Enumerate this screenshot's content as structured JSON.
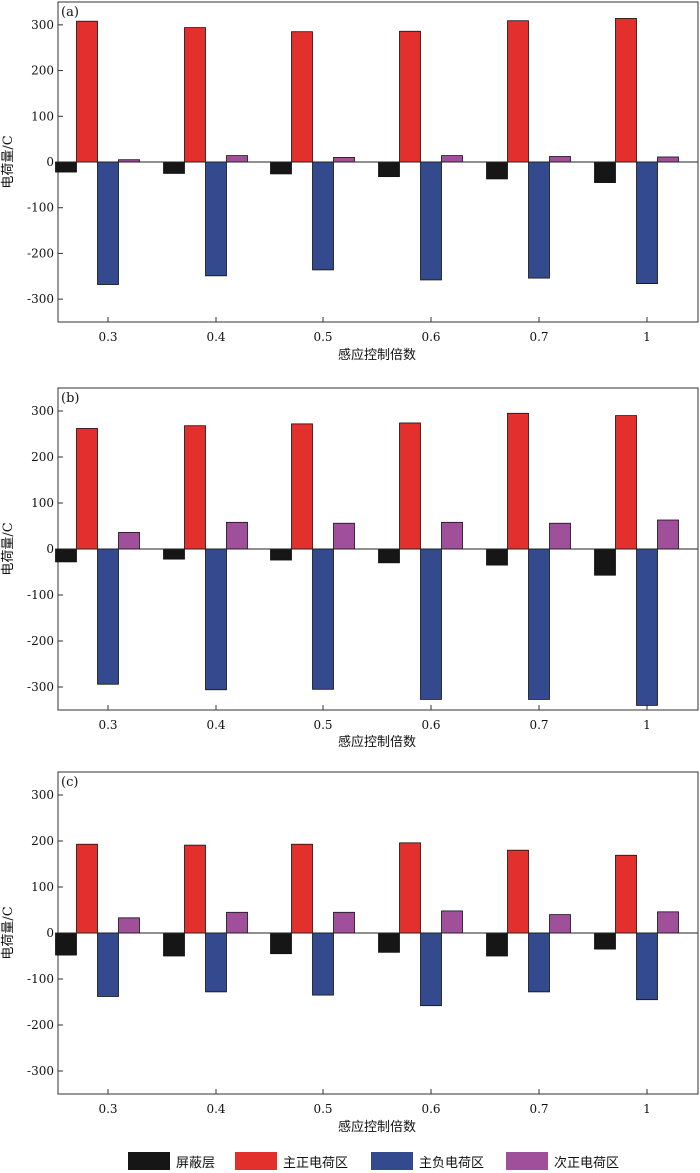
{
  "chart_data": [
    {
      "type": "bar",
      "panel_label": "(a)",
      "xlabel": "感应控制倍数",
      "ylabel": "电荷量/C",
      "ylim": [
        -350,
        350
      ],
      "yticks": [
        300,
        200,
        100,
        0,
        -100,
        -200,
        -300
      ],
      "categories": [
        "0.3",
        "0.4",
        "0.5",
        "0.6",
        "0.7",
        "1"
      ],
      "series": [
        {
          "name": "屏蔽层",
          "values": [
            -22,
            -25,
            -26,
            -32,
            -37,
            -45
          ]
        },
        {
          "name": "主正电荷区",
          "values": [
            308,
            294,
            285,
            286,
            309,
            314
          ]
        },
        {
          "name": "主负电荷区",
          "values": [
            -268,
            -249,
            -236,
            -258,
            -254,
            -266
          ]
        },
        {
          "name": "次正电荷区",
          "values": [
            5,
            14,
            10,
            14,
            12,
            11
          ]
        }
      ]
    },
    {
      "type": "bar",
      "panel_label": "(b)",
      "xlabel": "感应控制倍数",
      "ylabel": "电荷量/C",
      "ylim": [
        -350,
        350
      ],
      "yticks": [
        300,
        200,
        100,
        0,
        -100,
        -200,
        -300
      ],
      "categories": [
        "0.3",
        "0.4",
        "0.5",
        "0.6",
        "0.7",
        "1"
      ],
      "series": [
        {
          "name": "屏蔽层",
          "values": [
            -28,
            -22,
            -24,
            -30,
            -35,
            -57
          ]
        },
        {
          "name": "主正电荷区",
          "values": [
            262,
            268,
            272,
            274,
            295,
            290
          ]
        },
        {
          "name": "主负电荷区",
          "values": [
            -294,
            -306,
            -305,
            -327,
            -327,
            -340
          ]
        },
        {
          "name": "次正电荷区",
          "values": [
            36,
            58,
            56,
            58,
            56,
            63
          ]
        }
      ]
    },
    {
      "type": "bar",
      "panel_label": "(c)",
      "xlabel": "感应控制倍数",
      "ylabel": "电荷量/C",
      "ylim": [
        -350,
        350
      ],
      "yticks": [
        300,
        200,
        100,
        0,
        -100,
        -200,
        -300
      ],
      "categories": [
        "0.3",
        "0.4",
        "0.5",
        "0.6",
        "0.7",
        "1"
      ],
      "series": [
        {
          "name": "屏蔽层",
          "values": [
            -48,
            -50,
            -45,
            -42,
            -50,
            -35
          ]
        },
        {
          "name": "主正电荷区",
          "values": [
            193,
            191,
            193,
            196,
            180,
            169
          ]
        },
        {
          "name": "主负电荷区",
          "values": [
            -138,
            -128,
            -135,
            -158,
            -128,
            -145
          ]
        },
        {
          "name": "次正电荷区",
          "values": [
            33,
            45,
            45,
            48,
            40,
            46
          ]
        }
      ]
    }
  ],
  "legend": [
    {
      "label": "屏蔽层",
      "color": "#161616"
    },
    {
      "label": "主正电荷区",
      "color": "#e4302c"
    },
    {
      "label": "主负电荷区",
      "color": "#334a8e"
    },
    {
      "label": "次正电荷区",
      "color": "#a0509a"
    }
  ]
}
